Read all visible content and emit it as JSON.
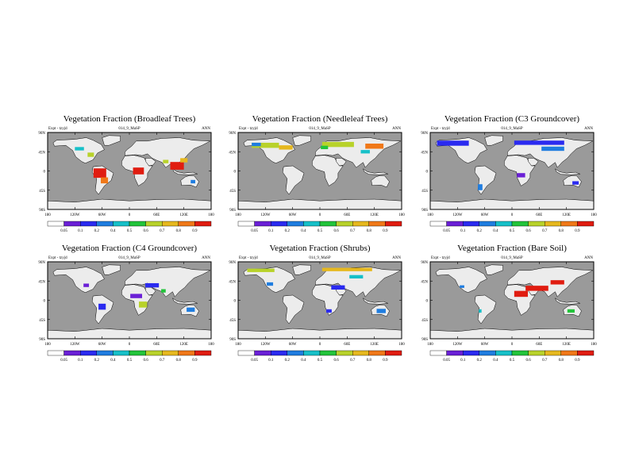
{
  "figure": {
    "experiment_label": "Expt - tzyjd",
    "run_label": "014_9_MaSP",
    "period_label": "ANN",
    "lat_ticks": [
      "90N",
      "45N",
      "0",
      "45S",
      "90S"
    ],
    "lon_ticks": [
      "180",
      "120W",
      "60W",
      "0",
      "60E",
      "120E",
      "180"
    ],
    "colorbar_labels": [
      "0.05",
      "0.1",
      "0.2",
      "0.4",
      "0.5",
      "0.6",
      "0.7",
      "0.8",
      "0.9"
    ],
    "colorbar_colors": [
      "#ffffff",
      "#6a1fd6",
      "#2a2af0",
      "#1f7de0",
      "#16c0c8",
      "#22c43a",
      "#b8d22a",
      "#e6b81e",
      "#f07818",
      "#e01c10"
    ],
    "ocean_color": "#9a9a9a",
    "land_color": "#ececec"
  },
  "panels": [
    {
      "title": "Vegetation Fraction (Broadleaf Trees)",
      "variable": "broadleaf_trees",
      "patches": [
        {
          "lon": -65,
          "lat": -5,
          "w": 28,
          "h": 22,
          "c": 9
        },
        {
          "lon": -55,
          "lat": -22,
          "w": 16,
          "h": 14,
          "c": 8
        },
        {
          "lon": 20,
          "lat": 0,
          "w": 24,
          "h": 16,
          "c": 9
        },
        {
          "lon": 105,
          "lat": 12,
          "w": 30,
          "h": 18,
          "c": 9
        },
        {
          "lon": 120,
          "lat": 25,
          "w": 16,
          "h": 10,
          "c": 7
        },
        {
          "lon": -110,
          "lat": 52,
          "w": 20,
          "h": 8,
          "c": 4
        },
        {
          "lon": -85,
          "lat": 38,
          "w": 14,
          "h": 10,
          "c": 6
        },
        {
          "lon": 80,
          "lat": 22,
          "w": 12,
          "h": 8,
          "c": 6
        },
        {
          "lon": 140,
          "lat": -25,
          "w": 10,
          "h": 8,
          "c": 3
        }
      ]
    },
    {
      "title": "Vegetation Fraction (Needleleaf Trees)",
      "variable": "needleleaf_trees",
      "patches": [
        {
          "lon": -120,
          "lat": 60,
          "w": 60,
          "h": 12,
          "c": 6
        },
        {
          "lon": -75,
          "lat": 55,
          "w": 30,
          "h": 10,
          "c": 7
        },
        {
          "lon": 40,
          "lat": 62,
          "w": 70,
          "h": 12,
          "c": 6
        },
        {
          "lon": 120,
          "lat": 58,
          "w": 40,
          "h": 12,
          "c": 8
        },
        {
          "lon": 100,
          "lat": 45,
          "w": 20,
          "h": 8,
          "c": 4
        },
        {
          "lon": -140,
          "lat": 62,
          "w": 20,
          "h": 8,
          "c": 3
        },
        {
          "lon": 10,
          "lat": 55,
          "w": 16,
          "h": 8,
          "c": 5
        }
      ]
    },
    {
      "title": "Vegetation Fraction (C3 Groundcover)",
      "variable": "c3_groundcover",
      "patches": [
        {
          "lon": -130,
          "lat": 65,
          "w": 70,
          "h": 12,
          "c": 2
        },
        {
          "lon": 60,
          "lat": 66,
          "w": 110,
          "h": 10,
          "c": 2
        },
        {
          "lon": 90,
          "lat": 52,
          "w": 50,
          "h": 10,
          "c": 3
        },
        {
          "lon": -70,
          "lat": -38,
          "w": 10,
          "h": 14,
          "c": 3
        },
        {
          "lon": 20,
          "lat": -10,
          "w": 18,
          "h": 10,
          "c": 1
        },
        {
          "lon": 140,
          "lat": -28,
          "w": 14,
          "h": 8,
          "c": 2
        }
      ]
    },
    {
      "title": "Vegetation Fraction (C4 Groundcover)",
      "variable": "c4_groundcover",
      "patches": [
        {
          "lon": 15,
          "lat": 10,
          "w": 26,
          "h": 10,
          "c": 1
        },
        {
          "lon": 30,
          "lat": -10,
          "w": 18,
          "h": 14,
          "c": 6
        },
        {
          "lon": -60,
          "lat": -15,
          "w": 16,
          "h": 14,
          "c": 2
        },
        {
          "lon": 50,
          "lat": 35,
          "w": 30,
          "h": 10,
          "c": 2
        },
        {
          "lon": 135,
          "lat": -22,
          "w": 18,
          "h": 10,
          "c": 3
        },
        {
          "lon": -95,
          "lat": 35,
          "w": 12,
          "h": 8,
          "c": 1
        },
        {
          "lon": 75,
          "lat": 22,
          "w": 10,
          "h": 8,
          "c": 5
        }
      ]
    },
    {
      "title": "Vegetation Fraction (Shrubs)",
      "variable": "shrubs",
      "patches": [
        {
          "lon": -130,
          "lat": 70,
          "w": 60,
          "h": 8,
          "c": 6
        },
        {
          "lon": 60,
          "lat": 72,
          "w": 110,
          "h": 8,
          "c": 7
        },
        {
          "lon": 80,
          "lat": 55,
          "w": 30,
          "h": 8,
          "c": 4
        },
        {
          "lon": 40,
          "lat": 30,
          "w": 30,
          "h": 10,
          "c": 2
        },
        {
          "lon": 135,
          "lat": -25,
          "w": 20,
          "h": 10,
          "c": 3
        },
        {
          "lon": 20,
          "lat": -25,
          "w": 12,
          "h": 8,
          "c": 2
        },
        {
          "lon": -110,
          "lat": 38,
          "w": 14,
          "h": 8,
          "c": 3
        }
      ]
    },
    {
      "title": "Vegetation Fraction (Bare Soil)",
      "variable": "bare_soil",
      "patches": [
        {
          "lon": 55,
          "lat": 28,
          "w": 50,
          "h": 12,
          "c": 9
        },
        {
          "lon": 20,
          "lat": 15,
          "w": 30,
          "h": 14,
          "c": 9
        },
        {
          "lon": 100,
          "lat": 42,
          "w": 30,
          "h": 10,
          "c": 9
        },
        {
          "lon": 130,
          "lat": -25,
          "w": 16,
          "h": 8,
          "c": 5
        },
        {
          "lon": -110,
          "lat": 32,
          "w": 10,
          "h": 6,
          "c": 3
        },
        {
          "lon": -70,
          "lat": -25,
          "w": 6,
          "h": 8,
          "c": 4
        }
      ]
    }
  ]
}
